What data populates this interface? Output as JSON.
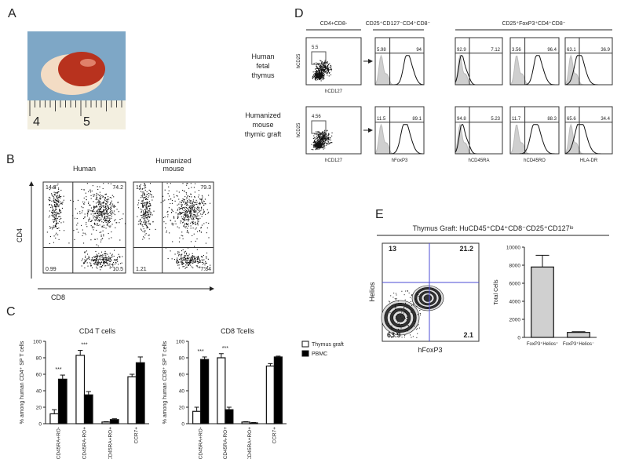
{
  "panel_labels": [
    "A",
    "B",
    "C",
    "D",
    "E"
  ],
  "panel_a": {
    "ruler_labels": [
      4,
      5
    ]
  },
  "panel_b": {
    "titles": [
      [
        "Human"
      ],
      [
        "Humanized",
        "mouse"
      ]
    ],
    "y_axis": "CD4",
    "x_axis": "CD8",
    "quadrants": [
      [
        14.3,
        74.2,
        0.99,
        10.5
      ],
      [
        11.7,
        79.3,
        1.21,
        7.84
      ]
    ]
  },
  "panel_d": {
    "column_headers": [
      "CD4+CD8-",
      "CD25⁺CD127⁻CD4⁺CD8⁻",
      "CD25⁺FoxP3⁺CD4⁺CD8⁻"
    ],
    "row_labels": [
      [
        "Human",
        "fetal",
        "thymus"
      ],
      [
        "Humanized",
        "mouse",
        "thymic graft"
      ]
    ],
    "gate_values": [
      5.5,
      4.56
    ],
    "dot_axes": [
      [
        "hCD25",
        "hCD127"
      ],
      [
        "hCD25",
        "hCD127"
      ]
    ],
    "histogram_axes": [
      "hFoxP3",
      "hCD45RA",
      "hCD45RO",
      "HLA-DR"
    ],
    "histogram_values": [
      [
        [
          5.98,
          94
        ],
        [
          92.9,
          7.12
        ],
        [
          3.56,
          96.4
        ],
        [
          63.1,
          36.9
        ]
      ],
      [
        [
          11.5,
          89.1
        ],
        [
          94.8,
          5.23
        ],
        [
          11.7,
          88.3
        ],
        [
          65.6,
          34.4
        ]
      ]
    ]
  },
  "panel_e": {
    "title": "Thymus Graft:  HuCD45⁺CD4⁺CD8⁻CD25⁺CD127ˡᵒ",
    "y_axis": "Helios",
    "x_axis": "hFoxP3",
    "quadrants": [
      13,
      21.2,
      63.9,
      2.1
    ]
  },
  "chart_data": [
    {
      "type": "bar",
      "title": "CD4 T cells",
      "y_label": "% among human CD4⁺ SP T cells",
      "categories": [
        "CD45RA+RO-",
        "CD45RA-RO+",
        "CD45RA+RO+",
        "CCR7+"
      ],
      "annotations": [
        "***",
        "***",
        null,
        null
      ],
      "series": [
        {
          "color": "#ffffff",
          "values": [
            12,
            83,
            2,
            57
          ],
          "errors": [
            5,
            6,
            0.5,
            3
          ]
        },
        {
          "color": "#000000",
          "values": [
            54,
            35,
            5,
            74
          ],
          "errors": [
            5,
            4,
            1,
            7
          ]
        }
      ],
      "ylim": [
        0,
        100
      ],
      "yticks": [
        0,
        20,
        40,
        60,
        80,
        100
      ]
    },
    {
      "type": "bar",
      "title": "CD8 Tcells",
      "y_label": "% among human CD8⁺ SP T cells",
      "categories": [
        "CD45RA+RO-",
        "CD45RA-RO+",
        "CD45RA+RO+",
        "CCR7+"
      ],
      "annotations": [
        "***",
        "***",
        null,
        null
      ],
      "series": [
        {
          "name": "Thymus graft",
          "color": "#ffffff",
          "values": [
            15,
            80,
            2,
            70
          ],
          "errors": [
            5,
            5,
            0.5,
            3
          ]
        },
        {
          "name": "PBMC",
          "color": "#000000",
          "values": [
            78,
            17,
            1,
            81
          ],
          "errors": [
            3,
            3,
            0.5,
            1
          ]
        }
      ],
      "ylim": [
        0,
        100
      ],
      "yticks": [
        0,
        20,
        40,
        60,
        80,
        100
      ]
    },
    {
      "type": "bar",
      "y_label": "Total Cells",
      "categories": [
        "FoxP3⁺Helios⁺",
        "FoxP3⁺Helios⁻"
      ],
      "series": [
        {
          "color": "#d0d0d0",
          "values": [
            7800,
            550
          ],
          "errors": [
            1300,
            80
          ]
        }
      ],
      "ylim": [
        0,
        10000
      ],
      "yticks": [
        0,
        2000,
        4000,
        6000,
        8000,
        10000
      ]
    }
  ]
}
